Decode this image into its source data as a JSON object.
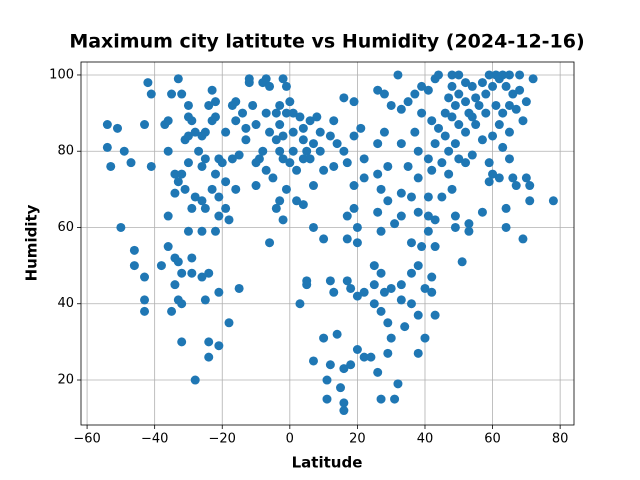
{
  "chart_data": {
    "type": "scatter",
    "title": "Maximum city latitute vs Humidity (2024-12-16)",
    "x_label": "Latitude",
    "y_label": "Humidity",
    "color": "#1f77b4",
    "grid": true,
    "xlim": [
      -61.8,
      84.1
    ],
    "ylim": [
      8.2,
      103.4
    ],
    "xticks": [
      {
        "value": -60,
        "label": "−60"
      },
      {
        "value": -40,
        "label": "−40"
      },
      {
        "value": -20,
        "label": "−20"
      },
      0,
      20,
      40,
      60,
      80
    ],
    "yticks": [
      20,
      40,
      60,
      80,
      100
    ],
    "x": [
      -54,
      -51,
      -54,
      -53,
      -49,
      -47,
      -50,
      -46,
      -46,
      -42,
      -41,
      -43,
      -41,
      -43,
      -43,
      -43,
      -37,
      -36,
      -36,
      -38,
      -36,
      -36,
      -35,
      -33,
      -32,
      -34,
      -33,
      -32,
      -34,
      -31,
      -35,
      -34,
      -34,
      -33,
      -32,
      -33,
      -32,
      -32,
      -30,
      -30,
      -29,
      -31,
      -30,
      -28,
      -30,
      -29,
      -28,
      -30,
      -29,
      -29,
      -28,
      -27,
      -26,
      -25,
      -26,
      -25,
      -26,
      -25,
      -26,
      -26,
      -25,
      -24,
      -24,
      -24,
      -24,
      -23,
      -22,
      -23,
      -22,
      -21,
      -22,
      -23,
      -21,
      -22,
      -21,
      -21,
      -21,
      -19,
      -20,
      -19,
      -19,
      -18,
      -18,
      -17,
      -16,
      -16,
      -15,
      -17,
      -16,
      -15,
      -14,
      -13,
      -13,
      -12,
      -12,
      -11,
      -10,
      -9,
      -10,
      -10,
      -8,
      -7,
      -6,
      -7,
      -6,
      -8,
      -7,
      -5,
      -6,
      -4,
      -3,
      -3,
      -4,
      -3,
      -4,
      -3,
      -2,
      -1,
      -1,
      -2,
      -2,
      -1,
      -2,
      0,
      1,
      1,
      1,
      2,
      0,
      2,
      3,
      4,
      4,
      5,
      4,
      4,
      3,
      5,
      5,
      6,
      7,
      6,
      7,
      7,
      7,
      8,
      9,
      9,
      10,
      10,
      10,
      11,
      11,
      12,
      12,
      13,
      13,
      12,
      14,
      13,
      14,
      15,
      16,
      16,
      16,
      16,
      16,
      17,
      17,
      17,
      17,
      18,
      18,
      19,
      19,
      19,
      19,
      20,
      20,
      20,
      20,
      21,
      22,
      22,
      22,
      22,
      24,
      25,
      25,
      25,
      26,
      26,
      26,
      26,
      27,
      27,
      27,
      27,
      27,
      26,
      28,
      28,
      29,
      29,
      28,
      29,
      29,
      30,
      31,
      30,
      30,
      31,
      32,
      32,
      33,
      33,
      33,
      33,
      33,
      33,
      34,
      35,
      35,
      36,
      36,
      36,
      36,
      37,
      37,
      38,
      38,
      38,
      38,
      38,
      38,
      39,
      39,
      39,
      40,
      40,
      41,
      41,
      41,
      41,
      41,
      42,
      42,
      42,
      42,
      43,
      43,
      43,
      43,
      43,
      44,
      44,
      45,
      45,
      46,
      46,
      47,
      47,
      47,
      48,
      48,
      48,
      48,
      49,
      49,
      49,
      49,
      50,
      50,
      50,
      50,
      51,
      52,
      52,
      52,
      52,
      53,
      53,
      53,
      54,
      54,
      54,
      55,
      55,
      56,
      57,
      57,
      57,
      58,
      58,
      59,
      59,
      59,
      60,
      60,
      60,
      61,
      61,
      62,
      62,
      62,
      63,
      63,
      63,
      64,
      64,
      64,
      65,
      65,
      65,
      65,
      66,
      66,
      67,
      67,
      68,
      68,
      69,
      69,
      70,
      70,
      71,
      71,
      72,
      78
    ],
    "values": [
      87,
      86,
      81,
      76,
      80,
      77,
      60,
      54,
      50,
      98,
      95,
      87,
      76,
      47,
      41,
      38,
      87,
      88,
      80,
      50,
      63,
      55,
      95,
      99,
      95,
      74,
      72,
      74,
      69,
      70,
      38,
      45,
      52,
      51,
      48,
      41,
      40,
      30,
      92,
      89,
      88,
      83,
      84,
      85,
      77,
      65,
      68,
      59,
      52,
      48,
      20,
      80,
      84,
      85,
      76,
      78,
      67,
      65,
      59,
      47,
      41,
      48,
      30,
      26,
      92,
      96,
      93,
      88,
      89,
      78,
      74,
      70,
      68,
      59,
      63,
      43,
      29,
      85,
      77,
      72,
      65,
      62,
      35,
      92,
      93,
      88,
      79,
      78,
      70,
      44,
      90,
      86,
      83,
      99,
      98,
      92,
      87,
      78,
      77,
      71,
      98,
      99,
      97,
      90,
      85,
      80,
      75,
      73,
      56,
      90,
      92,
      87,
      83,
      80,
      65,
      67,
      99,
      97,
      90,
      84,
      78,
      70,
      62,
      93,
      90,
      85,
      80,
      75,
      77,
      67,
      89,
      86,
      83,
      80,
      78,
      66,
      40,
      45,
      46,
      88,
      82,
      78,
      71,
      60,
      25,
      89,
      85,
      80,
      75,
      57,
      31,
      20,
      15,
      24,
      46,
      43,
      88,
      84,
      82,
      76,
      32,
      18,
      14,
      12,
      23,
      94,
      80,
      77,
      63,
      57,
      46,
      44,
      24,
      93,
      84,
      71,
      65,
      60,
      56,
      42,
      28,
      86,
      78,
      73,
      43,
      26,
      26,
      50,
      45,
      40,
      96,
      82,
      74,
      64,
      70,
      59,
      48,
      38,
      15,
      22,
      95,
      85,
      76,
      67,
      43,
      35,
      27,
      92,
      61,
      44,
      31,
      15,
      19,
      100,
      91,
      82,
      69,
      63,
      45,
      41,
      34,
      93,
      76,
      68,
      56,
      48,
      40,
      95,
      85,
      80,
      73,
      64,
      50,
      37,
      27,
      97,
      90,
      55,
      44,
      31,
      96,
      78,
      68,
      63,
      59,
      88,
      75,
      47,
      43,
      99,
      82,
      62,
      55,
      37,
      100,
      86,
      77,
      68,
      90,
      84,
      94,
      74,
      80,
      100,
      97,
      89,
      70,
      92,
      82,
      63,
      60,
      100,
      95,
      87,
      78,
      51,
      98,
      93,
      85,
      77,
      90,
      61,
      59,
      97,
      89,
      79,
      94,
      87,
      92,
      98,
      83,
      64,
      95,
      90,
      100,
      77,
      72,
      97,
      84,
      74,
      100,
      92,
      99,
      87,
      73,
      100,
      90,
      81,
      97,
      65,
      60,
      100,
      92,
      85,
      78,
      95,
      73,
      91,
      71,
      100,
      96,
      88,
      57,
      93,
      73,
      71,
      67,
      99,
      67
    ]
  }
}
